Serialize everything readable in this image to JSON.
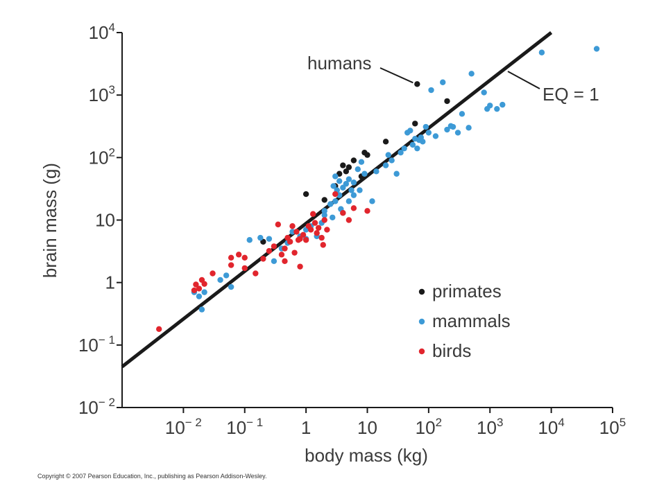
{
  "chart_data": {
    "type": "scatter",
    "title": "",
    "xlabel": "body mass (kg)",
    "ylabel": "brain mass (g)",
    "xscale": "log",
    "yscale": "log",
    "xlim": [
      0.001,
      100000
    ],
    "ylim": [
      0.01,
      10000
    ],
    "x_ticks": [
      {
        "value": 0.01,
        "label": "10",
        "sup": "− 2"
      },
      {
        "value": 0.1,
        "label": "10",
        "sup": "− 1"
      },
      {
        "value": 1,
        "label": "1",
        "sup": ""
      },
      {
        "value": 10,
        "label": "10",
        "sup": ""
      },
      {
        "value": 100,
        "label": "10",
        "sup": "2"
      },
      {
        "value": 1000,
        "label": "10",
        "sup": "3"
      },
      {
        "value": 10000,
        "label": "10",
        "sup": "4"
      },
      {
        "value": 100000,
        "label": "10",
        "sup": "5"
      }
    ],
    "y_ticks": [
      {
        "value": 0.01,
        "label": "10",
        "sup": "− 2"
      },
      {
        "value": 0.1,
        "label": "10",
        "sup": "− 1"
      },
      {
        "value": 1,
        "label": "1",
        "sup": ""
      },
      {
        "value": 10,
        "label": "10",
        "sup": ""
      },
      {
        "value": 100,
        "label": "10",
        "sup": "2"
      },
      {
        "value": 1000,
        "label": "10",
        "sup": "3"
      },
      {
        "value": 10000,
        "label": "10",
        "sup": "4"
      }
    ],
    "grid": false,
    "legend": "bottom-right",
    "reference_line": {
      "name": "EQ = 1",
      "x": [
        0.001,
        10000
      ],
      "y": [
        0.045,
        10000
      ]
    },
    "annotations": [
      {
        "text": "humans",
        "x": 65,
        "y": 1500
      },
      {
        "text": "EQ = 1",
        "x": 1500,
        "y": 1500
      }
    ],
    "series": [
      {
        "name": "primates",
        "color": "#1a1a1a",
        "points": [
          [
            0.2,
            4.5
          ],
          [
            0.5,
            4.5
          ],
          [
            1,
            26
          ],
          [
            2,
            21
          ],
          [
            3,
            35
          ],
          [
            3.5,
            55
          ],
          [
            4,
            75
          ],
          [
            4.5,
            60
          ],
          [
            5,
            70
          ],
          [
            6,
            90
          ],
          [
            8,
            50
          ],
          [
            9,
            120
          ],
          [
            10,
            110
          ],
          [
            20,
            180
          ],
          [
            60,
            350
          ],
          [
            65,
            1500
          ],
          [
            200,
            800
          ]
        ]
      },
      {
        "name": "mammals",
        "color": "#3d9ad6",
        "points": [
          [
            0.015,
            0.7
          ],
          [
            0.018,
            0.6
          ],
          [
            0.02,
            0.37
          ],
          [
            0.022,
            0.7
          ],
          [
            0.04,
            1.1
          ],
          [
            0.05,
            1.3
          ],
          [
            0.06,
            0.85
          ],
          [
            0.12,
            4.8
          ],
          [
            0.18,
            5.2
          ],
          [
            0.25,
            5
          ],
          [
            0.3,
            2.2
          ],
          [
            0.4,
            3.5
          ],
          [
            0.5,
            4.3
          ],
          [
            0.6,
            6.5
          ],
          [
            0.8,
            5.5
          ],
          [
            1,
            5
          ],
          [
            1,
            7
          ],
          [
            1.2,
            8
          ],
          [
            1.5,
            5.5
          ],
          [
            1.8,
            9
          ],
          [
            2,
            12
          ],
          [
            2,
            14
          ],
          [
            2.5,
            18
          ],
          [
            2.7,
            11
          ],
          [
            2.8,
            35
          ],
          [
            3,
            50
          ],
          [
            3,
            20
          ],
          [
            3.2,
            30
          ],
          [
            3.5,
            25
          ],
          [
            3.5,
            42
          ],
          [
            3.7,
            15
          ],
          [
            4,
            33
          ],
          [
            4,
            13
          ],
          [
            4.5,
            38
          ],
          [
            5,
            45
          ],
          [
            5,
            20
          ],
          [
            5.5,
            30
          ],
          [
            6,
            40
          ],
          [
            6,
            25
          ],
          [
            7,
            65
          ],
          [
            7.5,
            30
          ],
          [
            8,
            85
          ],
          [
            9,
            55
          ],
          [
            12,
            20
          ],
          [
            14,
            60
          ],
          [
            20,
            75
          ],
          [
            22,
            110
          ],
          [
            25,
            90
          ],
          [
            30,
            55
          ],
          [
            35,
            120
          ],
          [
            40,
            140
          ],
          [
            45,
            250
          ],
          [
            50,
            270
          ],
          [
            55,
            160
          ],
          [
            60,
            200
          ],
          [
            65,
            140
          ],
          [
            70,
            190
          ],
          [
            75,
            210
          ],
          [
            80,
            180
          ],
          [
            90,
            310
          ],
          [
            100,
            250
          ],
          [
            110,
            1200
          ],
          [
            130,
            220
          ],
          [
            170,
            1600
          ],
          [
            200,
            280
          ],
          [
            230,
            320
          ],
          [
            250,
            310
          ],
          [
            300,
            250
          ],
          [
            350,
            500
          ],
          [
            450,
            300
          ],
          [
            500,
            2200
          ],
          [
            800,
            1100
          ],
          [
            900,
            600
          ],
          [
            1000,
            680
          ],
          [
            1300,
            600
          ],
          [
            1600,
            700
          ],
          [
            7000,
            4800
          ],
          [
            55000,
            5500
          ]
        ]
      },
      {
        "name": "birds",
        "color": "#e1252d",
        "points": [
          [
            0.004,
            0.18
          ],
          [
            0.015,
            0.75
          ],
          [
            0.016,
            0.93
          ],
          [
            0.018,
            0.8
          ],
          [
            0.02,
            1.1
          ],
          [
            0.022,
            0.95
          ],
          [
            0.03,
            1.4
          ],
          [
            0.06,
            1.9
          ],
          [
            0.06,
            2.5
          ],
          [
            0.08,
            2.8
          ],
          [
            0.1,
            1.7
          ],
          [
            0.1,
            2.5
          ],
          [
            0.15,
            1.4
          ],
          [
            0.2,
            2.4
          ],
          [
            0.25,
            3.2
          ],
          [
            0.3,
            3.8
          ],
          [
            0.35,
            8.5
          ],
          [
            0.4,
            2.8
          ],
          [
            0.45,
            3.5
          ],
          [
            0.5,
            5.2
          ],
          [
            0.55,
            4.5
          ],
          [
            0.6,
            8
          ],
          [
            0.65,
            3
          ],
          [
            0.7,
            6.5
          ],
          [
            0.75,
            4.8
          ],
          [
            0.8,
            5
          ],
          [
            0.9,
            5.8
          ],
          [
            1,
            4.8
          ],
          [
            1.1,
            8
          ],
          [
            1.2,
            7
          ],
          [
            1.3,
            12.5
          ],
          [
            1.4,
            9
          ],
          [
            1.5,
            6.2
          ],
          [
            1.6,
            7.5
          ],
          [
            1.8,
            5.2
          ],
          [
            1.9,
            4
          ],
          [
            2,
            10
          ],
          [
            2.2,
            7
          ],
          [
            3,
            26
          ],
          [
            4,
            13
          ],
          [
            5,
            10
          ],
          [
            6,
            15.5
          ],
          [
            10,
            14
          ],
          [
            0.8,
            1.8
          ],
          [
            0.45,
            2.2
          ]
        ]
      }
    ]
  },
  "copyright": "Copyright © 2007 Pearson Education, Inc., publishing as Pearson Addison-Wesley."
}
